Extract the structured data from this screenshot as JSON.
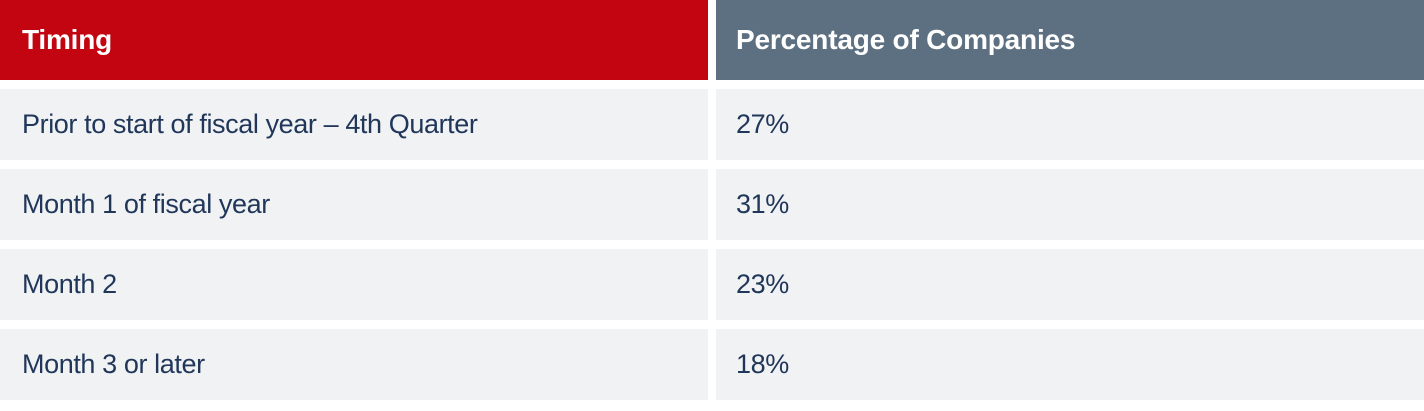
{
  "colors": {
    "header_timing_bg": "#c20511",
    "header_percentage_bg": "#5d7081",
    "row_bg": "#f1f2f4",
    "body_text": "#21375a",
    "header_text": "#ffffff",
    "gutter": "#ffffff"
  },
  "table": {
    "headers": {
      "timing": "Timing",
      "percentage": "Percentage of Companies"
    },
    "rows": [
      {
        "timing": "Prior to start of fiscal year – 4th Quarter",
        "percentage": "27%"
      },
      {
        "timing": "Month 1 of fiscal year",
        "percentage": "31%"
      },
      {
        "timing": "Month 2",
        "percentage": "23%"
      },
      {
        "timing": "Month 3 or later",
        "percentage": "18%"
      }
    ]
  },
  "chart_data": {
    "type": "table",
    "columns": [
      "Timing",
      "Percentage of Companies"
    ],
    "categories": [
      "Prior to start of fiscal year – 4th Quarter",
      "Month 1 of fiscal year",
      "Month 2",
      "Month 3 or later"
    ],
    "values": [
      27,
      31,
      23,
      18
    ],
    "title": "",
    "legend": false,
    "grid": false
  }
}
